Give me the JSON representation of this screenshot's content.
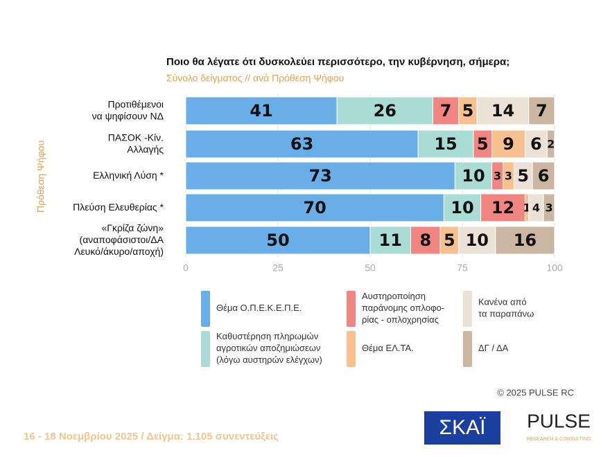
{
  "chart_data": {
    "type": "stacked-bar-horizontal",
    "title": "Ποιο θα λέγατε ότι δυσκολεύει περισσότερο, την κυβέρνηση, σήμερα;",
    "subtitle": "Σύνολο δείγματος // ανά Πρόθεση Ψήφου",
    "y_label": "Πρόθεση Ψήφου",
    "categories": [
      [
        "Προτιθέμενοι",
        "να ψηφίσουν ΝΔ"
      ],
      [
        "ΠΑΣΟΚ -Κίν.",
        "Αλλαγής"
      ],
      [
        "Ελληνική Λύση *"
      ],
      [
        "Πλεύση Ελευθερίας *"
      ],
      [
        "«Γκρίζα ζώνη»",
        "(αναποφάσιστοι/ΔΑ",
        "Λευκό/άκυρο/αποχή)"
      ]
    ],
    "series": [
      {
        "name": [
          "Θέμα Ο.Π.Ε.Κ.Ε.Π.Ε."
        ],
        "color": "#6aaee8",
        "values": [
          41,
          63,
          73,
          70,
          50
        ]
      },
      {
        "name": [
          "Καθυστέρηση πληρωμών",
          "αγροτικών αποζημιώσεων",
          "(λόγω αυστηρών ελέγχων)"
        ],
        "color": "#aadcd6",
        "values": [
          26,
          15,
          10,
          10,
          11
        ]
      },
      {
        "name": [
          "Αυστηροποίηση",
          "παράνομης οπλοφο-",
          "ρίας - οπλοχρησίας"
        ],
        "color": "#f08582",
        "values": [
          7,
          5,
          3,
          12,
          8
        ]
      },
      {
        "name": [
          "Θέμα ΕΛ.ΤΑ."
        ],
        "color": "#f6c18e",
        "values": [
          5,
          9,
          3,
          1,
          5
        ]
      },
      {
        "name": [
          "Κανένα από",
          "τα παραπάνω"
        ],
        "color": "#ebe1d6",
        "values": [
          14,
          6,
          5,
          4,
          10
        ]
      },
      {
        "name": [
          "ΔΓ / ΔΑ"
        ],
        "color": "#cbb7a1",
        "values": [
          7,
          2,
          6,
          3,
          16
        ]
      }
    ],
    "xlim": [
      0,
      100
    ],
    "xticks": [
      0,
      25,
      50,
      75,
      100
    ],
    "copyright": "©  2025  PULSE RC",
    "footer": "16 - 18 Νοεμβρίου 2025  /  Δείγμα:  1.105 συνεντεύξεις",
    "logo_left": "ΣΚΑΪ",
    "logo_right": "PULSE",
    "logo_right_sub": "RESEARCH & CONSULTING"
  }
}
